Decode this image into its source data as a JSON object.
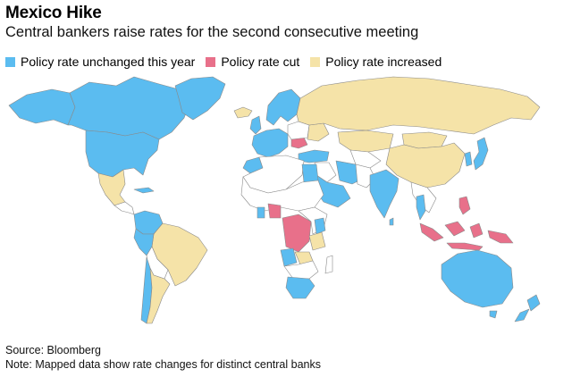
{
  "title": "Mexico Hike",
  "subtitle": "Central bankers raise rates for the second consecutive meeting",
  "legend": [
    {
      "label": "Policy rate unchanged this year",
      "color": "#5bbcf0"
    },
    {
      "label": "Policy rate cut",
      "color": "#e8708a"
    },
    {
      "label": "Policy rate increased",
      "color": "#f5e3a8"
    }
  ],
  "source": "Source: Bloomberg",
  "note": "Note: Mapped data show rate changes for distinct central banks",
  "colors": {
    "unchanged": "#5bbcf0",
    "cut": "#e8708a",
    "increased": "#f5e3a8",
    "no_data": "#ffffff",
    "border": "#888888"
  },
  "regions_shown": {
    "unchanged": [
      "Canada",
      "United States",
      "Greenland",
      "Cuba",
      "Colombia",
      "Venezuela",
      "Peru",
      "Chile",
      "Western Europe",
      "Scandinavia",
      "Turkey",
      "Saudi Arabia",
      "Iran",
      "India",
      "Japan",
      "Korea",
      "Thailand",
      "Morocco",
      "Egypt",
      "Australia",
      "New Zealand",
      "South Africa",
      "Angola",
      "Kenya",
      "Ghana"
    ],
    "cut": [
      "Indonesia",
      "DR Congo",
      "Romania",
      "Nigeria",
      "Philippines",
      "Papua New Guinea"
    ],
    "increased": [
      "Mexico",
      "Brazil",
      "Argentina",
      "Russia",
      "China",
      "Kazakhstan",
      "Mongolia",
      "Ukraine",
      "Tanzania",
      "Zambia",
      "Iceland"
    ]
  }
}
